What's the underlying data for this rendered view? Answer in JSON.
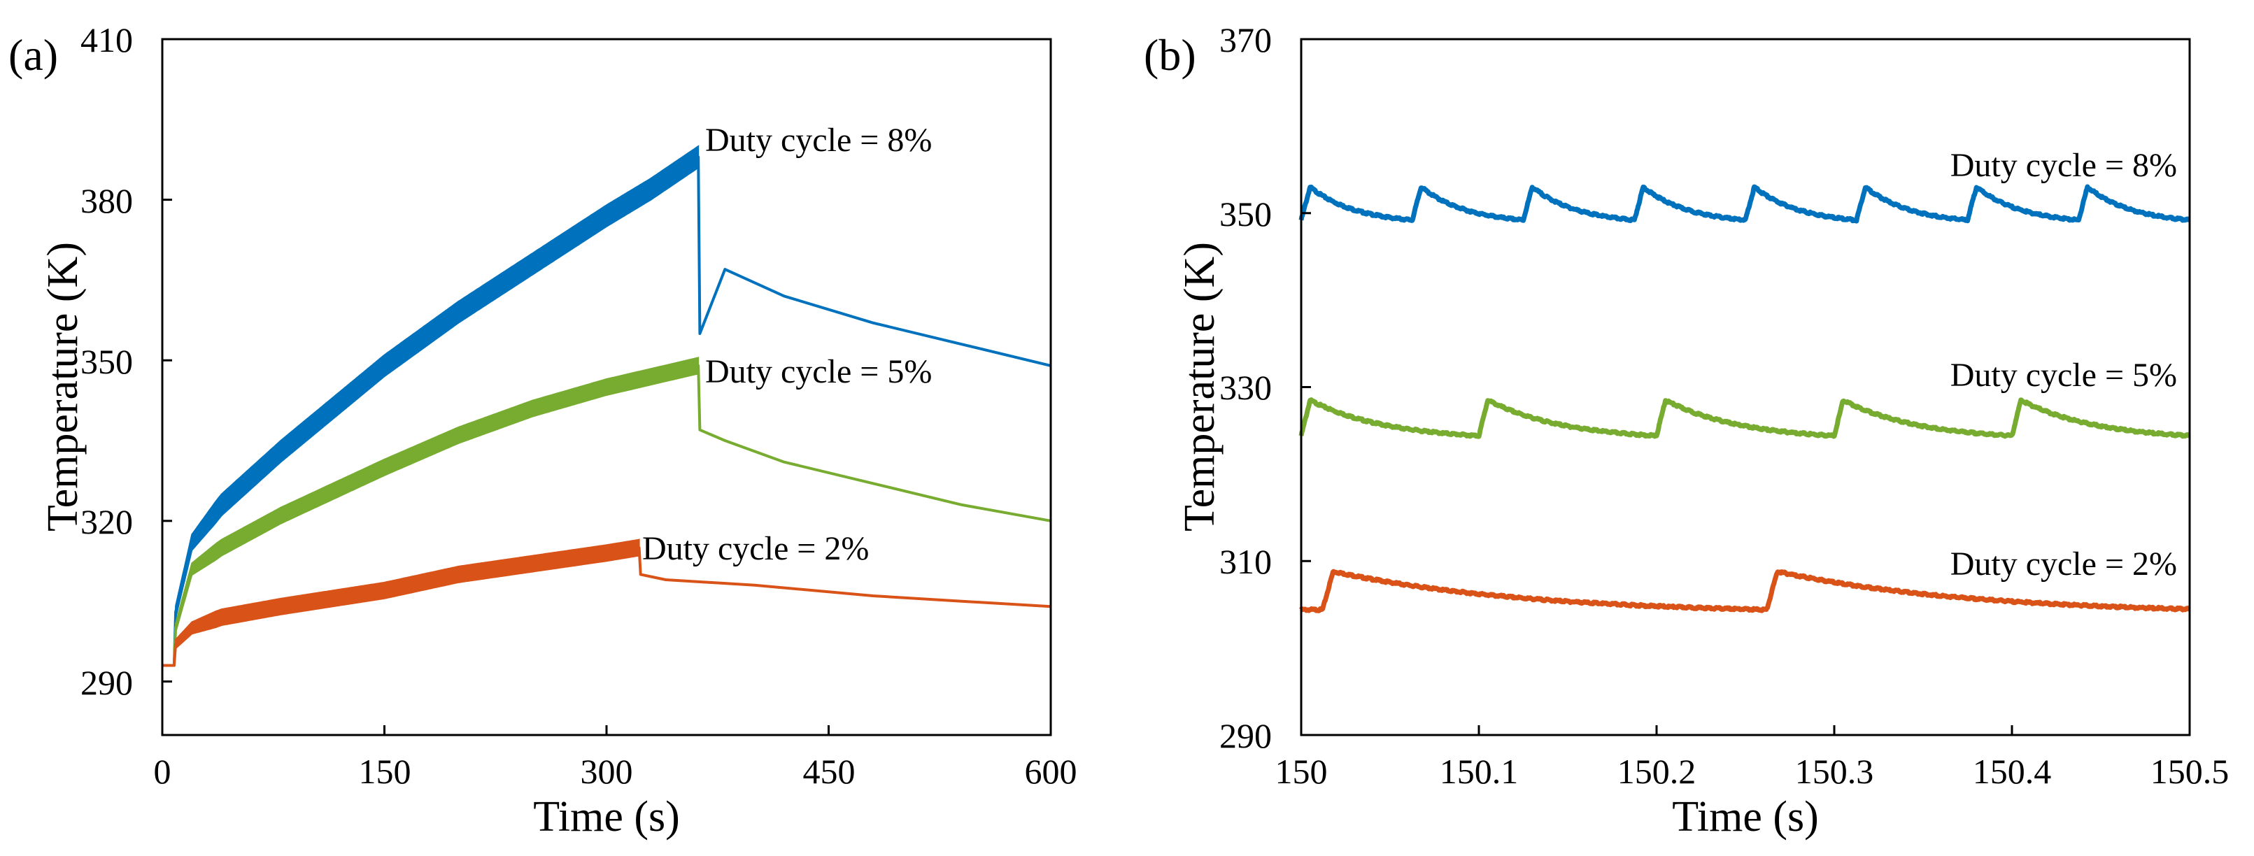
{
  "chart_data": [
    {
      "type": "line",
      "panel_label": "(a)",
      "xlabel": "Time (s)",
      "ylabel": "Temperature (K)",
      "xlim": [
        0,
        600
      ],
      "ylim": [
        280,
        410
      ],
      "xticks": [
        "0",
        "150",
        "300",
        "450",
        "600"
      ],
      "yticks": [
        "290",
        "320",
        "350",
        "380",
        "410"
      ],
      "grid": false,
      "series": [
        {
          "name": "Duty cycle = 8%",
          "color": "#0072BD",
          "band_width_K": 4,
          "curve": [
            [
              0,
              293
            ],
            [
              8,
              293
            ],
            [
              9,
              303
            ],
            [
              20,
              316
            ],
            [
              40,
              323
            ],
            [
              80,
              333
            ],
            [
              150,
              349
            ],
            [
              200,
              359
            ],
            [
              250,
              368
            ],
            [
              300,
              377
            ],
            [
              330,
              382
            ],
            [
              362,
              388
            ],
            [
              363,
              355
            ],
            [
              380,
              367
            ],
            [
              420,
              362
            ],
            [
              480,
              357
            ],
            [
              540,
              353
            ],
            [
              600,
              349
            ]
          ]
        },
        {
          "name": "Duty cycle = 5%",
          "color": "#77AC30",
          "band_width_K": 3,
          "curve": [
            [
              0,
              293
            ],
            [
              8,
              293
            ],
            [
              9,
              300
            ],
            [
              20,
              311
            ],
            [
              40,
              315
            ],
            [
              80,
              321
            ],
            [
              150,
              330
            ],
            [
              200,
              336
            ],
            [
              250,
              341
            ],
            [
              300,
              345
            ],
            [
              362,
              349
            ],
            [
              363,
              337
            ],
            [
              380,
              335
            ],
            [
              420,
              331
            ],
            [
              480,
              327
            ],
            [
              540,
              323
            ],
            [
              600,
              320
            ]
          ]
        },
        {
          "name": "Duty cycle = 2%",
          "color": "#D95319",
          "band_width_K": 3,
          "curve": [
            [
              0,
              293
            ],
            [
              8,
              293
            ],
            [
              9,
              297
            ],
            [
              20,
              300
            ],
            [
              40,
              302
            ],
            [
              80,
              304
            ],
            [
              150,
              307
            ],
            [
              200,
              310
            ],
            [
              250,
              312
            ],
            [
              300,
              314
            ],
            [
              322,
              315
            ],
            [
              323,
              310
            ],
            [
              340,
              309
            ],
            [
              400,
              308
            ],
            [
              480,
              306
            ],
            [
              540,
              305
            ],
            [
              600,
              304
            ]
          ]
        }
      ]
    },
    {
      "type": "line",
      "panel_label": "(b)",
      "xlabel": "Time (s)",
      "ylabel": "Temperature (K)",
      "xlim": [
        150,
        150.5
      ],
      "ylim": [
        290,
        370
      ],
      "xticks": [
        "150",
        "150.1",
        "150.2",
        "150.3",
        "150.4",
        "150.5"
      ],
      "yticks": [
        "290",
        "310",
        "330",
        "350",
        "370"
      ],
      "grid": false,
      "series": [
        {
          "name": "Duty cycle = 8%",
          "color": "#0072BD",
          "period_s": 0.0625,
          "first_rise_s": 150.0,
          "rise_s": 0.005,
          "peak_K": 353,
          "trough_K": 349.2
        },
        {
          "name": "Duty cycle = 5%",
          "color": "#77AC30",
          "period_s": 0.1,
          "first_rise_s": 150.0,
          "rise_s": 0.005,
          "peak_K": 328.5,
          "trough_K": 324.4
        },
        {
          "name": "Duty cycle = 2%",
          "color": "#D95319",
          "period_s": 0.25,
          "first_rise_s": 150.012,
          "rise_s": 0.006,
          "peak_K": 308.8,
          "trough_K": 304.4
        }
      ]
    }
  ]
}
